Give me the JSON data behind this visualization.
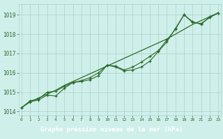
{
  "title": "Graphe pression niveau de la mer (hPa)",
  "hours": [
    0,
    1,
    2,
    3,
    4,
    5,
    6,
    7,
    8,
    9,
    10,
    11,
    12,
    13,
    14,
    15,
    16,
    17,
    18,
    19,
    20,
    21,
    22,
    23
  ],
  "line_smooth": [
    1014.2,
    1014.5,
    1014.7,
    1014.9,
    1015.1,
    1015.35,
    1015.55,
    1015.75,
    1015.95,
    1016.15,
    1016.35,
    1016.55,
    1016.75,
    1016.95,
    1017.15,
    1017.35,
    1017.55,
    1017.75,
    1018.0,
    1018.25,
    1018.5,
    1018.7,
    1018.9,
    1019.1
  ],
  "line_markers": [
    1014.2,
    1014.5,
    1014.6,
    1014.85,
    1014.8,
    1015.2,
    1015.5,
    1015.55,
    1015.65,
    1015.85,
    1016.4,
    1016.3,
    1016.1,
    1016.15,
    1016.3,
    1016.6,
    1017.1,
    1017.6,
    1018.3,
    1019.0,
    1018.6,
    1018.55,
    1018.85,
    1019.1
  ],
  "line_markers2": [
    1014.2,
    1014.55,
    1014.65,
    1015.0,
    1015.05,
    1015.3,
    1015.5,
    1015.6,
    1015.75,
    1016.0,
    1016.4,
    1016.35,
    1016.15,
    1016.3,
    1016.55,
    1016.85,
    1017.15,
    1017.7,
    1018.25,
    1019.0,
    1018.65,
    1018.5,
    1018.9,
    1019.1
  ],
  "ylim_min": 1013.8,
  "ylim_max": 1019.55,
  "yticks": [
    1014,
    1015,
    1016,
    1017,
    1018,
    1019
  ],
  "line_color": "#2d6a2d",
  "bg_color": "#cff0ea",
  "grid_color": "#aacfca",
  "title_bg": "#336633",
  "title_fg": "#ffffff",
  "axis_color": "#336633"
}
